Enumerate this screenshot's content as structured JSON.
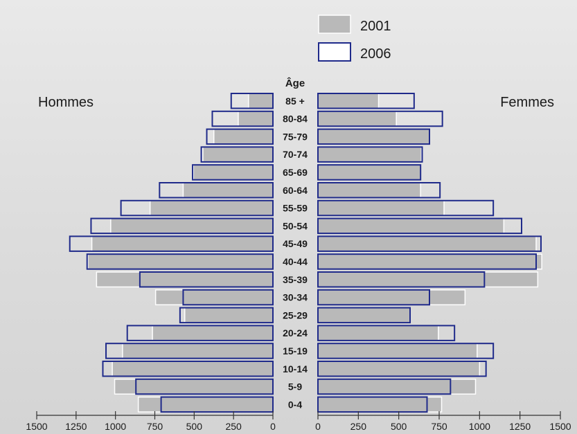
{
  "chart_data": {
    "type": "bar",
    "subtype": "population-pyramid",
    "title": "",
    "age_axis_title": "Âge",
    "left_group_label": "Hommes",
    "right_group_label": "Femmes",
    "legend_position": "top-center",
    "categories": [
      "85 +",
      "80-84",
      "75-79",
      "70-74",
      "65-69",
      "60-64",
      "55-59",
      "50-54",
      "45-49",
      "40-44",
      "35-39",
      "30-34",
      "25-29",
      "20-24",
      "15-19",
      "10-14",
      "5-9",
      "0-4"
    ],
    "series": [
      {
        "name": "2001",
        "style": "filled",
        "men": [
          155,
          220,
          375,
          445,
          505,
          570,
          780,
          1030,
          1150,
          1175,
          1120,
          745,
          560,
          765,
          955,
          1020,
          1005,
          855
        ],
        "women": [
          375,
          485,
          690,
          640,
          635,
          635,
          780,
          1150,
          1350,
          1385,
          1360,
          910,
          570,
          745,
          985,
          1000,
          975,
          765
        ]
      },
      {
        "name": "2006",
        "style": "outline",
        "men": [
          265,
          385,
          420,
          455,
          510,
          720,
          965,
          1155,
          1290,
          1180,
          845,
          570,
          590,
          925,
          1060,
          1080,
          870,
          710
        ],
        "women": [
          595,
          770,
          690,
          645,
          635,
          755,
          1085,
          1260,
          1380,
          1350,
          1030,
          690,
          570,
          845,
          1085,
          1040,
          820,
          675
        ]
      }
    ],
    "x_axis": {
      "range": [
        0,
        1500
      ],
      "tick_values": [
        0,
        250,
        500,
        750,
        1000,
        1250,
        1500
      ],
      "left_ticks": [
        "1500",
        "1250",
        "1000",
        "750",
        "500",
        "250",
        "0"
      ],
      "right_ticks": [
        "0",
        "250",
        "500",
        "750",
        "1000",
        "1250",
        "1500"
      ]
    },
    "grid": false,
    "colors": {
      "filled_bar": "#b9b9b9",
      "filled_edge": "#ffffff",
      "outline_bar": "#1f2a8a",
      "text": "#1a1a1a",
      "axis": "#333333"
    }
  }
}
